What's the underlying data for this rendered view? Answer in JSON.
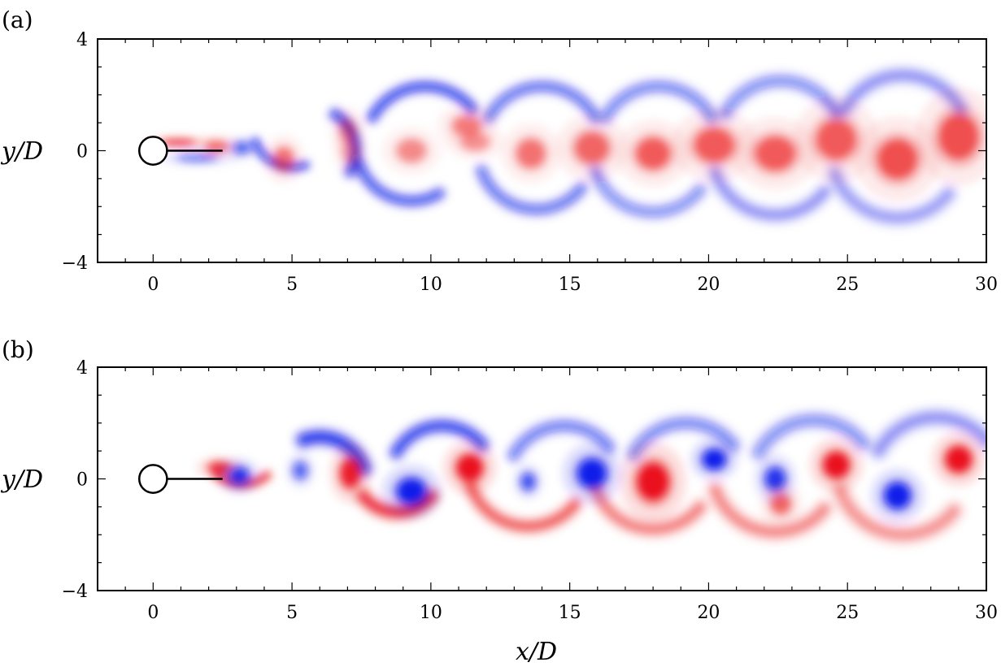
{
  "chart_data": [
    {
      "type": "heatmap",
      "panel_label": "(a)",
      "ylabel": "y/D",
      "xlabel": "",
      "xlim": [
        -2,
        30
      ],
      "ylim": [
        -4,
        4
      ],
      "xticks": [
        0,
        5,
        10,
        15,
        20,
        25,
        30
      ],
      "yticks": [
        -4,
        0,
        4
      ],
      "x_tick_labels": [
        "0",
        "5",
        "10",
        "15",
        "20",
        "25",
        "30"
      ],
      "y_tick_labels": [
        "−4",
        "0",
        "4"
      ],
      "grid": false,
      "cylinder": {
        "x": 0,
        "y": 0,
        "diameter": 1
      },
      "splitter_plate": {
        "x_start": 0.5,
        "x_end": 2.5,
        "y": 0
      },
      "colormap": {
        "positive": "#e8000b",
        "negative": "#0010e8",
        "zero": "#ffffff"
      },
      "vortices": [
        {
          "x": 0.9,
          "y": 0.3,
          "sign": 1,
          "strength": 0.7,
          "rx": 0.6,
          "ry": 0.12
        },
        {
          "x": 1.6,
          "y": -0.25,
          "sign": -1,
          "strength": 0.45,
          "rx": 0.7,
          "ry": 0.15
        },
        {
          "x": 2.3,
          "y": 0.15,
          "sign": 1,
          "strength": 0.5,
          "rx": 0.4,
          "ry": 0.2
        },
        {
          "x": 3.2,
          "y": 0.1,
          "sign": -1,
          "strength": 0.6,
          "rx": 0.3,
          "ry": 0.2
        },
        {
          "x": 4.7,
          "y": -0.3,
          "sign": 1,
          "strength": 0.5,
          "rx": 0.35,
          "ry": 0.4
        },
        {
          "x": 7.0,
          "y": 0.7,
          "sign": 1,
          "strength": 0.35,
          "rx": 0.3,
          "ry": 0.4
        },
        {
          "x": 7.1,
          "y": -0.05,
          "sign": 1,
          "strength": 0.3,
          "rx": 0.3,
          "ry": 0.4
        },
        {
          "x": 9.3,
          "y": 0.0,
          "sign": 1,
          "strength": 0.4,
          "rx": 0.5,
          "ry": 0.4
        },
        {
          "x": 11.3,
          "y": 0.9,
          "sign": 1,
          "strength": 0.45,
          "rx": 0.5,
          "ry": 0.35
        },
        {
          "x": 11.6,
          "y": 0.3,
          "sign": 1,
          "strength": 0.35,
          "rx": 0.5,
          "ry": 0.3
        },
        {
          "x": 13.6,
          "y": -0.1,
          "sign": 1,
          "strength": 0.5,
          "rx": 0.5,
          "ry": 0.5
        },
        {
          "x": 15.8,
          "y": 0.1,
          "sign": 1,
          "strength": 0.55,
          "rx": 0.6,
          "ry": 0.55
        },
        {
          "x": 18.0,
          "y": -0.1,
          "sign": 1,
          "strength": 0.6,
          "rx": 0.6,
          "ry": 0.55
        },
        {
          "x": 20.2,
          "y": 0.2,
          "sign": 1,
          "strength": 0.6,
          "rx": 0.7,
          "ry": 0.6
        },
        {
          "x": 22.4,
          "y": -0.1,
          "sign": 1,
          "strength": 0.6,
          "rx": 0.7,
          "ry": 0.6
        },
        {
          "x": 24.6,
          "y": 0.4,
          "sign": 1,
          "strength": 0.6,
          "rx": 0.7,
          "ry": 0.7
        },
        {
          "x": 26.8,
          "y": -0.3,
          "sign": 1,
          "strength": 0.65,
          "rx": 0.7,
          "ry": 0.7
        },
        {
          "x": 29.0,
          "y": 0.5,
          "sign": 1,
          "strength": 0.65,
          "rx": 0.7,
          "ry": 0.8
        }
      ],
      "shear_layers": [
        {
          "cx": 5.8,
          "cy": 0.0,
          "r": 1.5,
          "a0": -30,
          "a1": 60,
          "sign": -1,
          "strength": 0.9,
          "width": 0.28
        },
        {
          "cx": 5.0,
          "cy": 0.8,
          "r": 1.4,
          "a0": 200,
          "a1": 290,
          "sign": -1,
          "strength": 0.85,
          "width": 0.22
        },
        {
          "cx": 9.3,
          "cy": 0.2,
          "r": 2.0,
          "a0": 200,
          "a1": 300,
          "sign": -1,
          "strength": 0.8,
          "width": 0.28
        },
        {
          "cx": 9.8,
          "cy": 0.1,
          "r": 2.2,
          "a0": 40,
          "a1": 150,
          "sign": -1,
          "strength": 0.85,
          "width": 0.28
        },
        {
          "cx": 13.8,
          "cy": 0.0,
          "r": 2.1,
          "a0": 200,
          "a1": 320,
          "sign": -1,
          "strength": 0.65,
          "width": 0.3
        },
        {
          "cx": 14.0,
          "cy": 0.1,
          "r": 2.2,
          "a0": 30,
          "a1": 150,
          "sign": -1,
          "strength": 0.65,
          "width": 0.3
        },
        {
          "cx": 18.0,
          "cy": 0.0,
          "r": 2.2,
          "a0": 200,
          "a1": 320,
          "sign": -1,
          "strength": 0.5,
          "width": 0.32
        },
        {
          "cx": 18.2,
          "cy": 0.1,
          "r": 2.2,
          "a0": 30,
          "a1": 150,
          "sign": -1,
          "strength": 0.55,
          "width": 0.32
        },
        {
          "cx": 22.4,
          "cy": 0.0,
          "r": 2.3,
          "a0": 200,
          "a1": 320,
          "sign": -1,
          "strength": 0.45,
          "width": 0.34
        },
        {
          "cx": 22.6,
          "cy": 0.2,
          "r": 2.3,
          "a0": 30,
          "a1": 150,
          "sign": -1,
          "strength": 0.5,
          "width": 0.34
        },
        {
          "cx": 26.8,
          "cy": 0.0,
          "r": 2.4,
          "a0": 200,
          "a1": 320,
          "sign": -1,
          "strength": 0.4,
          "width": 0.36
        },
        {
          "cx": 27.0,
          "cy": 0.3,
          "r": 2.4,
          "a0": 30,
          "a1": 150,
          "sign": -1,
          "strength": 0.45,
          "width": 0.36
        }
      ]
    },
    {
      "type": "heatmap",
      "panel_label": "(b)",
      "ylabel": "y/D",
      "xlabel": "x/D",
      "xlim": [
        -2,
        30
      ],
      "ylim": [
        -4,
        4
      ],
      "xticks": [
        0,
        5,
        10,
        15,
        20,
        25,
        30
      ],
      "yticks": [
        -4,
        0,
        4
      ],
      "x_tick_labels": [
        "0",
        "5",
        "10",
        "15",
        "20",
        "25",
        "30"
      ],
      "y_tick_labels": [
        "−4",
        "0",
        "4"
      ],
      "grid": false,
      "cylinder": {
        "x": 0,
        "y": 0,
        "diameter": 1
      },
      "splitter_plate": {
        "x_start": 0.5,
        "x_end": 2.5,
        "y": 0
      },
      "colormap": {
        "positive": "#e8000b",
        "negative": "#0010e8",
        "zero": "#ffffff"
      },
      "vortices": [
        {
          "x": 2.4,
          "y": 0.4,
          "sign": 1,
          "strength": 0.8,
          "rx": 0.4,
          "ry": 0.2
        },
        {
          "x": 3.1,
          "y": 0.1,
          "sign": -1,
          "strength": 0.85,
          "rx": 0.35,
          "ry": 0.3
        },
        {
          "x": 5.3,
          "y": 0.3,
          "sign": -1,
          "strength": 0.6,
          "rx": 0.25,
          "ry": 0.3
        },
        {
          "x": 7.1,
          "y": 0.2,
          "sign": 1,
          "strength": 0.9,
          "rx": 0.35,
          "ry": 0.5
        },
        {
          "x": 9.3,
          "y": -0.45,
          "sign": -1,
          "strength": 1.0,
          "rx": 0.5,
          "ry": 0.45
        },
        {
          "x": 11.4,
          "y": 0.4,
          "sign": 1,
          "strength": 1.0,
          "rx": 0.45,
          "ry": 0.45
        },
        {
          "x": 13.5,
          "y": -0.1,
          "sign": -1,
          "strength": 0.7,
          "rx": 0.25,
          "ry": 0.3
        },
        {
          "x": 15.8,
          "y": 0.2,
          "sign": -1,
          "strength": 1.0,
          "rx": 0.5,
          "ry": 0.5
        },
        {
          "x": 18.0,
          "y": -0.1,
          "sign": 1,
          "strength": 1.0,
          "rx": 0.55,
          "ry": 0.65
        },
        {
          "x": 20.2,
          "y": 0.7,
          "sign": -1,
          "strength": 1.0,
          "rx": 0.4,
          "ry": 0.35
        },
        {
          "x": 22.4,
          "y": 0.0,
          "sign": -1,
          "strength": 0.85,
          "rx": 0.35,
          "ry": 0.4
        },
        {
          "x": 22.6,
          "y": -0.9,
          "sign": 1,
          "strength": 0.55,
          "rx": 0.35,
          "ry": 0.35
        },
        {
          "x": 24.6,
          "y": 0.5,
          "sign": 1,
          "strength": 1.0,
          "rx": 0.45,
          "ry": 0.45
        },
        {
          "x": 26.8,
          "y": -0.6,
          "sign": -1,
          "strength": 1.0,
          "rx": 0.45,
          "ry": 0.45
        },
        {
          "x": 29.0,
          "y": 0.7,
          "sign": 1,
          "strength": 1.0,
          "rx": 0.45,
          "ry": 0.45
        }
      ],
      "shear_layers": [
        {
          "cx": 3.2,
          "cy": 1.2,
          "r": 1.4,
          "a0": 230,
          "a1": 310,
          "sign": 1,
          "strength": 0.9,
          "width": 0.22
        },
        {
          "cx": 6.0,
          "cy": -0.2,
          "r": 1.7,
          "a0": 20,
          "a1": 110,
          "sign": -1,
          "strength": 1.0,
          "width": 0.36
        },
        {
          "cx": 8.8,
          "cy": 0.4,
          "r": 1.6,
          "a0": 220,
          "a1": 320,
          "sign": 1,
          "strength": 0.95,
          "width": 0.34
        },
        {
          "cx": 10.4,
          "cy": 0.0,
          "r": 1.9,
          "a0": 40,
          "a1": 150,
          "sign": -1,
          "strength": 0.9,
          "width": 0.32
        },
        {
          "cx": 13.5,
          "cy": 0.5,
          "r": 2.2,
          "a0": 200,
          "a1": 320,
          "sign": 1,
          "strength": 0.7,
          "width": 0.32
        },
        {
          "cx": 14.8,
          "cy": -0.2,
          "r": 2.1,
          "a0": 40,
          "a1": 150,
          "sign": -1,
          "strength": 0.6,
          "width": 0.32
        },
        {
          "cx": 18.0,
          "cy": 0.4,
          "r": 2.2,
          "a0": 200,
          "a1": 320,
          "sign": 1,
          "strength": 0.55,
          "width": 0.34
        },
        {
          "cx": 19.2,
          "cy": -0.2,
          "r": 2.2,
          "a0": 40,
          "a1": 150,
          "sign": -1,
          "strength": 0.55,
          "width": 0.34
        },
        {
          "cx": 22.4,
          "cy": 0.4,
          "r": 2.3,
          "a0": 200,
          "a1": 320,
          "sign": 1,
          "strength": 0.5,
          "width": 0.36
        },
        {
          "cx": 23.8,
          "cy": -0.2,
          "r": 2.3,
          "a0": 40,
          "a1": 150,
          "sign": -1,
          "strength": 0.5,
          "width": 0.36
        },
        {
          "cx": 27.0,
          "cy": 0.4,
          "r": 2.4,
          "a0": 200,
          "a1": 320,
          "sign": 1,
          "strength": 0.45,
          "width": 0.38
        },
        {
          "cx": 28.2,
          "cy": -0.2,
          "r": 2.4,
          "a0": 40,
          "a1": 150,
          "sign": -1,
          "strength": 0.45,
          "width": 0.38
        }
      ]
    }
  ]
}
